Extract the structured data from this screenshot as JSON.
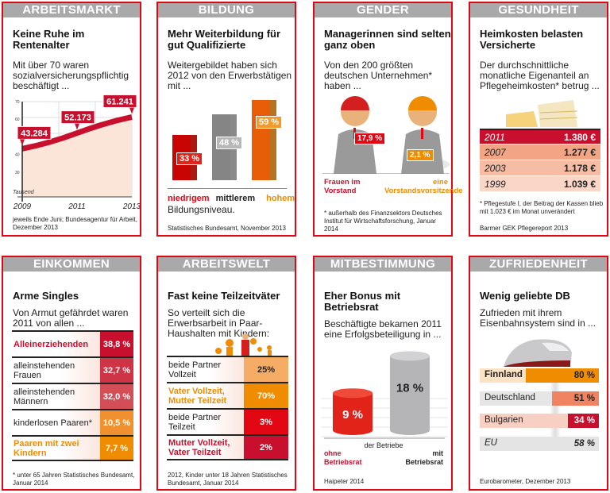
{
  "cards": [
    {
      "header": "ARBEITSMARKT",
      "title": "Keine Ruhe im Rentenalter",
      "subtitle": "Mit über 70 waren sozialversicherungspflichtig beschäftigt ...",
      "footnote": "jeweils Ende Juni; Bundesagentur für Arbeit, Dezember 2013",
      "chart": {
        "type": "line",
        "unit_label": "Tausend",
        "y_ticks": [
          "70",
          "60",
          "40",
          "30"
        ],
        "ylim": [
          25,
          70
        ],
        "x_ticks": [
          "2009",
          "2011",
          "2013"
        ],
        "points": [
          {
            "x": 2009,
            "y": 43.284,
            "label": "43.284"
          },
          {
            "x": 2011,
            "y": 52.173,
            "label": "52.173"
          },
          {
            "x": 2013,
            "y": 61.241,
            "label": "61.241"
          }
        ],
        "line_color": "#c8102e",
        "fill_color": "#fbe4d8"
      }
    },
    {
      "header": "BILDUNG",
      "title": "Mehr Weiterbildung für gut Qualifizierte",
      "subtitle": "Weitergebildet haben sich 2012 von den Erwerbstätigen mit ...",
      "footnote": "Statistisches Bundesamt, November 2013",
      "bars": [
        {
          "label": "niedrigem",
          "value": 33,
          "text": "33 %",
          "color": "#e2231a"
        },
        {
          "label": "mittlerem",
          "value": 48,
          "text": "48 %",
          "color": "#b8b8b8"
        },
        {
          "label": "hohem",
          "value": 59,
          "text": "59 %",
          "color": "#f39a2b"
        }
      ],
      "suffix": "Bildungsniveau."
    },
    {
      "header": "GENDER",
      "title": "Managerinnen sind selten ganz oben",
      "subtitle": "Von den 200 größten deutschen Unternehmen* haben ...",
      "footnote": "* außerhalb des Finanzsektors Deutsches Institut für Wirtschaftsforschung, Januar 2014",
      "items": [
        {
          "value": "17,9 %",
          "label": "Frauen im Vorstand",
          "color": "#e30613"
        },
        {
          "value": "2,1 %",
          "label": "eine Vorstandsvorsitzende",
          "color": "#f08c00"
        }
      ]
    },
    {
      "header": "GESUNDHEIT",
      "title": "Heimkosten belasten Versicherte",
      "subtitle": "Der durchschnittliche monatliche Eigenanteil an Pflegeheimkosten* betrug ...",
      "footnote": "* Pflegestufe I, der Beitrag der Kassen blieb mit 1.023 € im Monat unverändert",
      "source": "Barmer GEK Pflegereport 2013",
      "rows": [
        {
          "year": "2011",
          "value": "1.380 €",
          "color": "#c8102e"
        },
        {
          "year": "2007",
          "value": "1.277 €",
          "color": "#f2a585"
        },
        {
          "year": "2003",
          "value": "1.178 €",
          "color": "#f6bda4"
        },
        {
          "year": "1999",
          "value": "1.039 €",
          "color": "#fad6c6"
        }
      ]
    },
    {
      "header": "EINKOMMEN",
      "title": "Arme Singles",
      "subtitle": "Von Armut gefährdet waren 2011 von allen ...",
      "footnote": "* unter 65 Jahren Statistisches Bundesamt, Januar 2014",
      "rows": [
        {
          "label": "Alleinerziehenden",
          "value": "38,8 %",
          "color": "#c8102e"
        },
        {
          "label": "alleinstehenden Frauen",
          "value": "32,7 %",
          "color": "#cf3346"
        },
        {
          "label": "alleinstehenden Männern",
          "value": "32,0 %",
          "color": "#d44e58"
        },
        {
          "label": "kinderlosen Paaren*",
          "value": "10,5 %",
          "color": "#f0902e"
        },
        {
          "label": "Paaren mit zwei Kindern",
          "value": "7,7 %",
          "color": "#f08c00"
        }
      ]
    },
    {
      "header": "ARBEITSWELT",
      "title": "Fast keine Teilzeitväter",
      "subtitle": "So verteilt sich die Erwerbsarbeit in Paar-Haushalten mit Kindern:",
      "footnote": "2012, Kinder unter 18 Jahren Statistisches Bundesamt, Januar 2014",
      "rows": [
        {
          "label": "beide Partner Vollzeit",
          "value": "25%",
          "color": "#f5ad66"
        },
        {
          "label": "Vater Vollzeit, Mutter Teilzeit",
          "value": "70%",
          "color": "#f08c00"
        },
        {
          "label": "beide Partner Teilzeit",
          "value": "3%",
          "color": "#e30613"
        },
        {
          "label": "Mutter Vollzeit, Vater Teilzeit",
          "value": "2%",
          "color": "#c8102e"
        }
      ]
    },
    {
      "header": "MITBESTIMMUNG",
      "title": "Eher Bonus mit Betriebsrat",
      "subtitle": "Beschäftigte bekamen 2011 eine Erfolgsbeteiligung in ...",
      "footnote": "Haipeter 2014",
      "middle": "der Betriebe",
      "bars": [
        {
          "label": "ohne Betriebsrat",
          "value": 9,
          "text": "9 %",
          "color": "#e2231a"
        },
        {
          "label": "mit Betriebsrat",
          "value": 18,
          "text": "18 %",
          "color": "#b5b5b8"
        }
      ]
    },
    {
      "header": "ZUFRIEDENHEIT",
      "title": "Wenig geliebte DB",
      "subtitle": "Zufrieden mit ihrem Eisenbahnsystem sind in ...",
      "footnote": "Eurobarometer, Dezember 2013",
      "rows": [
        {
          "label": "Finnland",
          "value": 80,
          "text": "80 %",
          "color": "#f08c00",
          "bg": "#fde2c4"
        },
        {
          "label": "Deutschland",
          "value": 51,
          "text": "51 %",
          "color": "#f08462",
          "bg": "#e6e6e6"
        },
        {
          "label": "Bulgarien",
          "value": 34,
          "text": "34 %",
          "color": "#c8102e",
          "bg": "#f8cfc3"
        },
        {
          "label": "EU",
          "value": 58,
          "text": "58 %",
          "color": "#d6d6d6",
          "bg": "#e4e4e4"
        }
      ]
    }
  ]
}
